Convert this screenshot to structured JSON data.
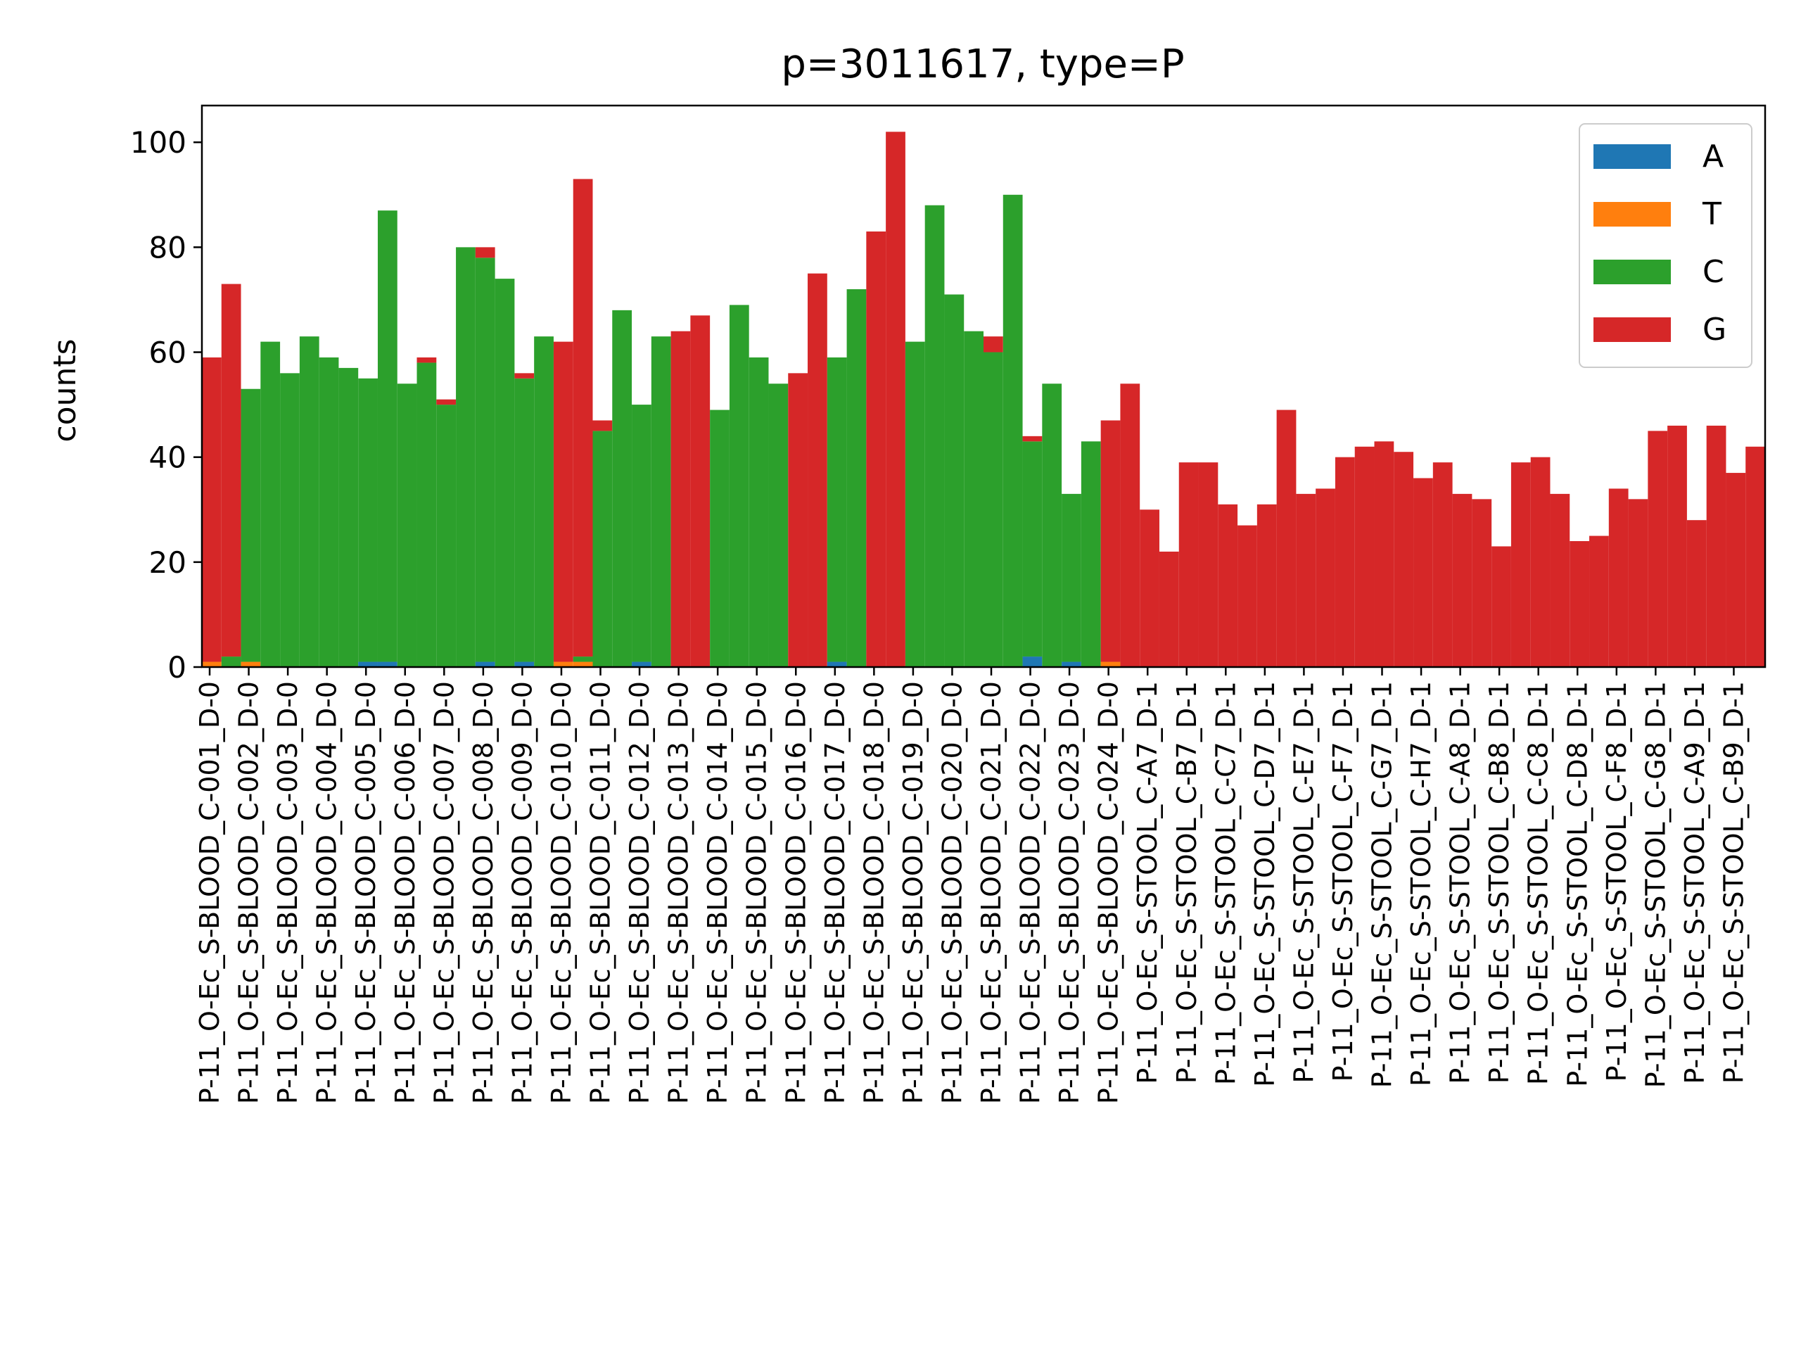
{
  "chart_data": {
    "type": "bar",
    "title": "p=3011617, type=P",
    "ylabel": "counts",
    "xlabel": "",
    "ylim": [
      0,
      107
    ],
    "yticks": [
      0,
      20,
      40,
      60,
      80,
      100
    ],
    "grid": false,
    "legend_position": "top-right",
    "stacked": true,
    "bases": [
      "A",
      "T",
      "C",
      "G"
    ],
    "colors": {
      "A": "#1f77b4",
      "T": "#ff7f0e",
      "C": "#2ca02c",
      "G": "#d62728"
    },
    "categories": [
      "P-11_O-Ec_S-BLOOD_C-001_D-0",
      "P-11_O-Ec_S-BLOOD_C-002_D-0",
      "P-11_O-Ec_S-BLOOD_C-003_D-0",
      "P-11_O-Ec_S-BLOOD_C-004_D-0",
      "P-11_O-Ec_S-BLOOD_C-005_D-0",
      "P-11_O-Ec_S-BLOOD_C-006_D-0",
      "P-11_O-Ec_S-BLOOD_C-007_D-0",
      "P-11_O-Ec_S-BLOOD_C-008_D-0",
      "P-11_O-Ec_S-BLOOD_C-009_D-0",
      "P-11_O-Ec_S-BLOOD_C-010_D-0",
      "P-11_O-Ec_S-BLOOD_C-011_D-0",
      "P-11_O-Ec_S-BLOOD_C-012_D-0",
      "P-11_O-Ec_S-BLOOD_C-013_D-0",
      "P-11_O-Ec_S-BLOOD_C-014_D-0",
      "P-11_O-Ec_S-BLOOD_C-015_D-0",
      "P-11_O-Ec_S-BLOOD_C-016_D-0",
      "P-11_O-Ec_S-BLOOD_C-017_D-0",
      "P-11_O-Ec_S-BLOOD_C-018_D-0",
      "P-11_O-Ec_S-BLOOD_C-019_D-0",
      "P-11_O-Ec_S-BLOOD_C-020_D-0",
      "P-11_O-Ec_S-BLOOD_C-021_D-0",
      "P-11_O-Ec_S-BLOOD_C-022_D-0",
      "P-11_O-Ec_S-BLOOD_C-023_D-0",
      "P-11_O-Ec_S-BLOOD_C-024_D-0",
      "P-11_O-Ec_S-STOOL_C-A7_D-1",
      "P-11_O-Ec_S-STOOL_C-B7_D-1",
      "P-11_O-Ec_S-STOOL_C-C7_D-1",
      "P-11_O-Ec_S-STOOL_C-D7_D-1",
      "P-11_O-Ec_S-STOOL_C-E7_D-1",
      "P-11_O-Ec_S-STOOL_C-F7_D-1",
      "P-11_O-Ec_S-STOOL_C-G7_D-1",
      "P-11_O-Ec_S-STOOL_C-H7_D-1",
      "P-11_O-Ec_S-STOOL_C-A8_D-1",
      "P-11_O-Ec_S-STOOL_C-B8_D-1",
      "P-11_O-Ec_S-STOOL_C-C8_D-1",
      "P-11_O-Ec_S-STOOL_C-D8_D-1",
      "P-11_O-Ec_S-STOOL_C-F8_D-1",
      "P-11_O-Ec_S-STOOL_C-G8_D-1",
      "P-11_O-Ec_S-STOOL_C-A9_D-1",
      "P-11_O-Ec_S-STOOL_C-B9_D-1"
    ],
    "bars_per_category": 2,
    "counts": [
      [
        {
          "A": 0,
          "T": 1,
          "C": 0,
          "G": 58
        },
        {
          "A": 0,
          "T": 0,
          "C": 2,
          "G": 71
        }
      ],
      [
        {
          "A": 0,
          "T": 1,
          "C": 52,
          "G": 0
        },
        {
          "A": 0,
          "T": 0,
          "C": 62,
          "G": 0
        }
      ],
      [
        {
          "A": 0,
          "T": 0,
          "C": 56,
          "G": 0
        },
        {
          "A": 0,
          "T": 0,
          "C": 63,
          "G": 0
        }
      ],
      [
        {
          "A": 0,
          "T": 0,
          "C": 59,
          "G": 0
        },
        {
          "A": 0,
          "T": 0,
          "C": 57,
          "G": 0
        }
      ],
      [
        {
          "A": 1,
          "T": 0,
          "C": 54,
          "G": 0
        },
        {
          "A": 1,
          "T": 0,
          "C": 86,
          "G": 0
        }
      ],
      [
        {
          "A": 0,
          "T": 0,
          "C": 54,
          "G": 0
        },
        {
          "A": 0,
          "T": 0,
          "C": 58,
          "G": 1
        }
      ],
      [
        {
          "A": 0,
          "T": 0,
          "C": 50,
          "G": 1
        },
        {
          "A": 0,
          "T": 0,
          "C": 80,
          "G": 0
        }
      ],
      [
        {
          "A": 1,
          "T": 0,
          "C": 77,
          "G": 2
        },
        {
          "A": 0,
          "T": 0,
          "C": 74,
          "G": 0
        }
      ],
      [
        {
          "A": 1,
          "T": 0,
          "C": 54,
          "G": 1
        },
        {
          "A": 0,
          "T": 0,
          "C": 63,
          "G": 0
        }
      ],
      [
        {
          "A": 0,
          "T": 1,
          "C": 0,
          "G": 61
        },
        {
          "A": 0,
          "T": 1,
          "C": 1,
          "G": 91
        }
      ],
      [
        {
          "A": 0,
          "T": 0,
          "C": 45,
          "G": 2
        },
        {
          "A": 0,
          "T": 0,
          "C": 68,
          "G": 0
        }
      ],
      [
        {
          "A": 1,
          "T": 0,
          "C": 49,
          "G": 0
        },
        {
          "A": 0,
          "T": 0,
          "C": 63,
          "G": 0
        }
      ],
      [
        {
          "A": 0,
          "T": 0,
          "C": 0,
          "G": 64
        },
        {
          "A": 0,
          "T": 0,
          "C": 0,
          "G": 67
        }
      ],
      [
        {
          "A": 0,
          "T": 0,
          "C": 49,
          "G": 0
        },
        {
          "A": 0,
          "T": 0,
          "C": 69,
          "G": 0
        }
      ],
      [
        {
          "A": 0,
          "T": 0,
          "C": 59,
          "G": 0
        },
        {
          "A": 0,
          "T": 0,
          "C": 54,
          "G": 0
        }
      ],
      [
        {
          "A": 0,
          "T": 0,
          "C": 0,
          "G": 56
        },
        {
          "A": 0,
          "T": 0,
          "C": 0,
          "G": 75
        }
      ],
      [
        {
          "A": 1,
          "T": 0,
          "C": 58,
          "G": 0
        },
        {
          "A": 0,
          "T": 0,
          "C": 72,
          "G": 0
        }
      ],
      [
        {
          "A": 0,
          "T": 0,
          "C": 0,
          "G": 83
        },
        {
          "A": 0,
          "T": 0,
          "C": 0,
          "G": 102
        }
      ],
      [
        {
          "A": 0,
          "T": 0,
          "C": 62,
          "G": 0
        },
        {
          "A": 0,
          "T": 0,
          "C": 88,
          "G": 0
        }
      ],
      [
        {
          "A": 0,
          "T": 0,
          "C": 71,
          "G": 0
        },
        {
          "A": 0,
          "T": 0,
          "C": 64,
          "G": 0
        }
      ],
      [
        {
          "A": 0,
          "T": 0,
          "C": 60,
          "G": 3
        },
        {
          "A": 0,
          "T": 0,
          "C": 90,
          "G": 0
        }
      ],
      [
        {
          "A": 2,
          "T": 0,
          "C": 41,
          "G": 1
        },
        {
          "A": 0,
          "T": 0,
          "C": 54,
          "G": 0
        }
      ],
      [
        {
          "A": 1,
          "T": 0,
          "C": 32,
          "G": 0
        },
        {
          "A": 0,
          "T": 0,
          "C": 43,
          "G": 0
        }
      ],
      [
        {
          "A": 0,
          "T": 1,
          "C": 0,
          "G": 46
        },
        {
          "A": 0,
          "T": 0,
          "C": 0,
          "G": 54
        }
      ],
      [
        {
          "A": 0,
          "T": 0,
          "C": 0,
          "G": 30
        },
        {
          "A": 0,
          "T": 0,
          "C": 0,
          "G": 22
        }
      ],
      [
        {
          "A": 0,
          "T": 0,
          "C": 0,
          "G": 39
        },
        {
          "A": 0,
          "T": 0,
          "C": 0,
          "G": 39
        }
      ],
      [
        {
          "A": 0,
          "T": 0,
          "C": 0,
          "G": 31
        },
        {
          "A": 0,
          "T": 0,
          "C": 0,
          "G": 27
        }
      ],
      [
        {
          "A": 0,
          "T": 0,
          "C": 0,
          "G": 31
        },
        {
          "A": 0,
          "T": 0,
          "C": 0,
          "G": 49
        }
      ],
      [
        {
          "A": 0,
          "T": 0,
          "C": 0,
          "G": 33
        },
        {
          "A": 0,
          "T": 0,
          "C": 0,
          "G": 34
        }
      ],
      [
        {
          "A": 0,
          "T": 0,
          "C": 0,
          "G": 40
        },
        {
          "A": 0,
          "T": 0,
          "C": 0,
          "G": 42
        }
      ],
      [
        {
          "A": 0,
          "T": 0,
          "C": 0,
          "G": 43
        },
        {
          "A": 0,
          "T": 0,
          "C": 0,
          "G": 41
        }
      ],
      [
        {
          "A": 0,
          "T": 0,
          "C": 0,
          "G": 36
        },
        {
          "A": 0,
          "T": 0,
          "C": 0,
          "G": 39
        }
      ],
      [
        {
          "A": 0,
          "T": 0,
          "C": 0,
          "G": 33
        },
        {
          "A": 0,
          "T": 0,
          "C": 0,
          "G": 32
        }
      ],
      [
        {
          "A": 0,
          "T": 0,
          "C": 0,
          "G": 23
        },
        {
          "A": 0,
          "T": 0,
          "C": 0,
          "G": 39
        }
      ],
      [
        {
          "A": 0,
          "T": 0,
          "C": 0,
          "G": 40
        },
        {
          "A": 0,
          "T": 0,
          "C": 0,
          "G": 33
        }
      ],
      [
        {
          "A": 0,
          "T": 0,
          "C": 0,
          "G": 24
        },
        {
          "A": 0,
          "T": 0,
          "C": 0,
          "G": 25
        }
      ],
      [
        {
          "A": 0,
          "T": 0,
          "C": 0,
          "G": 34
        },
        {
          "A": 0,
          "T": 0,
          "C": 0,
          "G": 32
        }
      ],
      [
        {
          "A": 0,
          "T": 0,
          "C": 0,
          "G": 45
        },
        {
          "A": 0,
          "T": 0,
          "C": 0,
          "G": 46
        }
      ],
      [
        {
          "A": 0,
          "T": 0,
          "C": 0,
          "G": 28
        },
        {
          "A": 0,
          "T": 0,
          "C": 0,
          "G": 46
        }
      ],
      [
        {
          "A": 0,
          "T": 0,
          "C": 0,
          "G": 37
        },
        {
          "A": 0,
          "T": 0,
          "C": 0,
          "G": 42
        }
      ]
    ]
  }
}
